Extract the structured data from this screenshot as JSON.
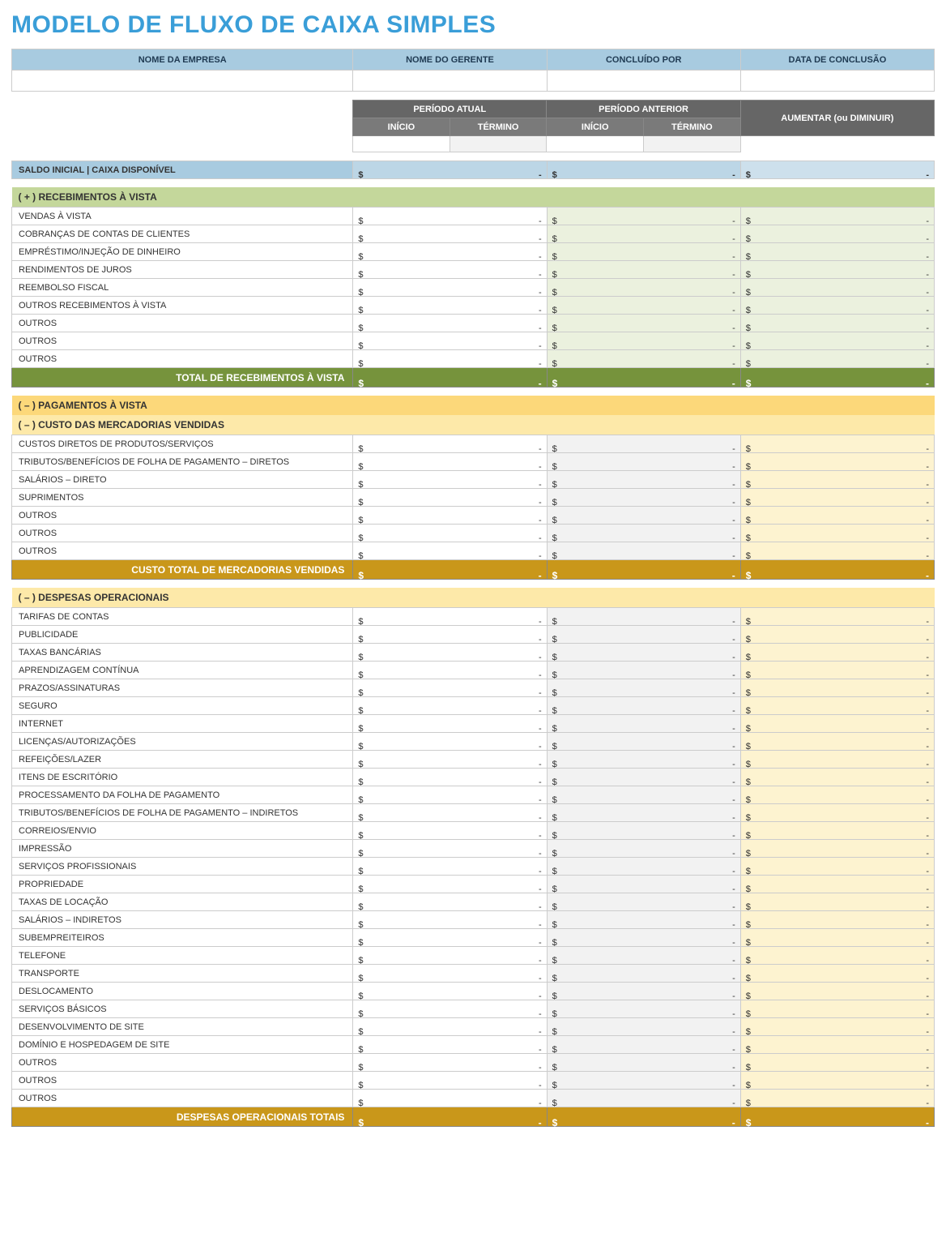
{
  "title": "MODELO DE FLUXO DE CAIXA SIMPLES",
  "title_color": "#3a9ed8",
  "info_headers": [
    "NOME DA EMPRESA",
    "NOME DO GERENTE",
    "CONCLUÍDO POR",
    "DATA DE CONCLUSÃO"
  ],
  "period": {
    "current": "PERÍODO ATUAL",
    "previous": "PERÍODO ANTERIOR",
    "inc_dec": "AUMENTAR (ou DIMINUIR)",
    "start": "INÍCIO",
    "end": "TÉRMINO"
  },
  "saldo_inicial": {
    "label": "SALDO INICIAL | CAIXA DISPONÍVEL",
    "bg": "#a8cbe0",
    "money_bg": [
      "#bcd6e6",
      "#bcd6e6",
      "#cde0ec"
    ]
  },
  "sections": [
    {
      "id": "receipts",
      "header": "( + ) RECEBIMENTOS À VISTA",
      "header_bg": "#c4d79b",
      "row_money_bg": [
        "#ffffff",
        "#ebf1de",
        "#ebf1de"
      ],
      "rows": [
        "VENDAS À VISTA",
        "COBRANÇAS DE CONTAS DE CLIENTES",
        "EMPRÉSTIMO/INJEÇÃO DE DINHEIRO",
        "RENDIMENTOS DE JUROS",
        "REEMBOLSO FISCAL",
        "OUTROS RECEBIMENTOS À VISTA",
        "OUTROS",
        "OUTROS",
        "OUTROS"
      ],
      "total_label": "TOTAL DE RECEBIMENTOS À VISTA",
      "total_bg": "#76933c"
    },
    {
      "id": "payments",
      "header": "( – ) PAGAMENTOS À VISTA",
      "header_bg": "#fcd87a",
      "subheader": "( – ) CUSTO DAS MERCADORIAS VENDIDAS",
      "subheader_bg": "#fde9a9",
      "row_money_bg": [
        "#ffffff",
        "#f2f2f2",
        "#fdf3d0"
      ],
      "rows": [
        "CUSTOS DIRETOS DE PRODUTOS/SERVIÇOS",
        "TRIBUTOS/BENEFÍCIOS DE FOLHA DE PAGAMENTO – DIRETOS",
        "SALÁRIOS – DIRETO",
        "SUPRIMENTOS",
        "OUTROS",
        "OUTROS",
        "OUTROS"
      ],
      "total_label": "CUSTO TOTAL DE MERCADORIAS VENDIDAS",
      "total_bg": "#c9971a"
    },
    {
      "id": "opex",
      "header": "( – ) DESPESAS OPERACIONAIS",
      "header_bg": "#fde9a9",
      "row_money_bg": [
        "#ffffff",
        "#f2f2f2",
        "#fdf3d0"
      ],
      "rows": [
        "TARIFAS DE CONTAS",
        "PUBLICIDADE",
        "TAXAS BANCÁRIAS",
        "APRENDIZAGEM CONTÍNUA",
        "PRAZOS/ASSINATURAS",
        "SEGURO",
        "INTERNET",
        "LICENÇAS/AUTORIZAÇÕES",
        "REFEIÇÕES/LAZER",
        "ITENS DE ESCRITÓRIO",
        "PROCESSAMENTO DA FOLHA DE PAGAMENTO",
        "TRIBUTOS/BENEFÍCIOS DE FOLHA DE PAGAMENTO – INDIRETOS",
        "CORREIOS/ENVIO",
        "IMPRESSÃO",
        "SERVIÇOS PROFISSIONAIS",
        "PROPRIEDADE",
        "TAXAS DE LOCAÇÃO",
        "SALÁRIOS – INDIRETOS",
        "SUBEMPREITEIROS",
        "TELEFONE",
        "TRANSPORTE",
        "DESLOCAMENTO",
        "SERVIÇOS BÁSICOS",
        "DESENVOLVIMENTO DE SITE",
        "DOMÍNIO E HOSPEDAGEM DE SITE",
        "OUTROS",
        "OUTROS",
        "OUTROS"
      ],
      "total_label": "DESPESAS OPERACIONAIS TOTAIS",
      "total_bg": "#c9971a"
    }
  ],
  "currency": "$",
  "dash": "-"
}
